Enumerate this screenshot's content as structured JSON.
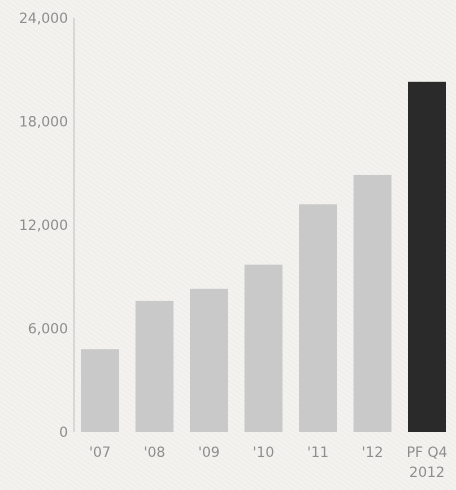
{
  "chart_data": {
    "type": "bar",
    "categories": [
      "'07",
      "'08",
      "'09",
      "'10",
      "'11",
      "'12",
      "PF Q4\n2012"
    ],
    "values": [
      4800,
      7600,
      8300,
      9700,
      13200,
      14900,
      20300
    ],
    "bar_colors": [
      "#c9c9c9",
      "#c9c9c9",
      "#c9c9c9",
      "#c9c9c9",
      "#c9c9c9",
      "#c9c9c9",
      "#2a2a2a"
    ],
    "yticks": [
      "0",
      "6,000",
      "12,000",
      "18,000",
      "24,000"
    ],
    "ytick_values": [
      0,
      6000,
      12000,
      18000,
      24000
    ],
    "ylim": [
      0,
      24000
    ],
    "grid": false,
    "title": "",
    "xlabel": "",
    "ylabel": ""
  }
}
